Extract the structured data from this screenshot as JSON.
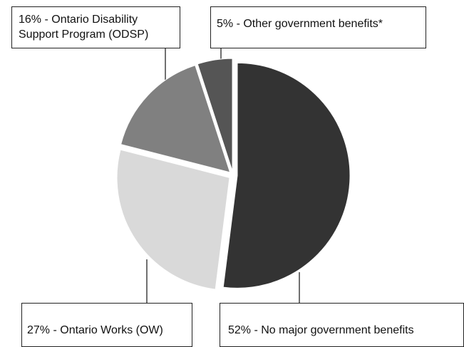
{
  "chart_data": {
    "type": "pie",
    "title": "",
    "categories": [
      "No major government benefits",
      "Ontario Works (OW)",
      "Ontario Disability Support Program (ODSP)",
      "Other government benefits*"
    ],
    "values": [
      52,
      27,
      16,
      5
    ],
    "slices": [
      {
        "label": "No major government benefits",
        "value": 52,
        "color": "#333333"
      },
      {
        "label": "Ontario Works (OW)",
        "value": 27,
        "color": "#d9d9d9"
      },
      {
        "label": "Ontario Disability Support Program (ODSP)",
        "value": 16,
        "color": "#808080"
      },
      {
        "label": "Other government benefits*",
        "value": 5,
        "color": "#555555"
      }
    ],
    "labels": {
      "odsp": "16% - Ontario Disability Support Program (ODSP)",
      "other": "5%  - Other government benefits*",
      "ow": "27% - Ontario Works (OW)",
      "none": "52% - No major government benefits"
    },
    "legend": "none",
    "grid": false
  }
}
